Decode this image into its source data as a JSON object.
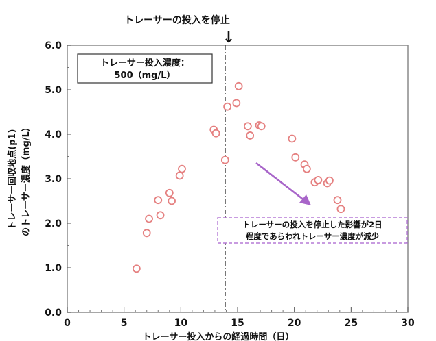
{
  "chart_data": {
    "type": "scatter",
    "title": "",
    "xlabel": "トレーサー投入からの経過時間（日）",
    "ylabel_line1": "トレーサー回収地点(p1)",
    "ylabel_line2": "のトレーサー濃度（mg/L）",
    "xlim": [
      0,
      30
    ],
    "ylim": [
      0,
      6.0
    ],
    "x_ticks": [
      "0",
      "5",
      "10",
      "15",
      "20",
      "25",
      "30"
    ],
    "y_ticks": [
      "0.0",
      "1.0",
      "2.0",
      "3.0",
      "4.0",
      "5.0",
      "6.0"
    ],
    "grid": false,
    "stop_marker": {
      "x": 13.9,
      "label": "トレーサーの投入を停止",
      "arrow": "↓"
    },
    "legend_box": {
      "line1": "トレーサー投入濃度：",
      "line2": "500（mg/L）"
    },
    "annotation": {
      "line1": "トレーサーの投入を停止した影響が2日",
      "line2": "程度であらわれトレーサー濃度が減少"
    },
    "marker_color": "#e58080",
    "arrow_color": "#a865c9",
    "annotation_border_color": "#b57ad6",
    "series": [
      {
        "points": [
          {
            "x": 6.1,
            "y": 0.98
          },
          {
            "x": 7.0,
            "y": 1.78
          },
          {
            "x": 7.2,
            "y": 2.1
          },
          {
            "x": 8.0,
            "y": 2.52
          },
          {
            "x": 8.2,
            "y": 2.18
          },
          {
            "x": 9.0,
            "y": 2.68
          },
          {
            "x": 9.2,
            "y": 2.5
          },
          {
            "x": 9.9,
            "y": 3.07
          },
          {
            "x": 10.1,
            "y": 3.22
          },
          {
            "x": 12.9,
            "y": 4.1
          },
          {
            "x": 13.1,
            "y": 4.02
          },
          {
            "x": 13.9,
            "y": 3.42
          },
          {
            "x": 14.1,
            "y": 4.62
          },
          {
            "x": 14.9,
            "y": 4.7
          },
          {
            "x": 15.1,
            "y": 5.08
          },
          {
            "x": 15.9,
            "y": 4.18
          },
          {
            "x": 16.1,
            "y": 3.97
          },
          {
            "x": 16.9,
            "y": 4.2
          },
          {
            "x": 17.1,
            "y": 4.18
          },
          {
            "x": 19.8,
            "y": 3.9
          },
          {
            "x": 20.1,
            "y": 3.48
          },
          {
            "x": 20.9,
            "y": 3.32
          },
          {
            "x": 21.1,
            "y": 3.22
          },
          {
            "x": 21.8,
            "y": 2.92
          },
          {
            "x": 22.1,
            "y": 2.97
          },
          {
            "x": 22.9,
            "y": 2.9
          },
          {
            "x": 23.1,
            "y": 2.96
          },
          {
            "x": 23.8,
            "y": 2.52
          },
          {
            "x": 24.1,
            "y": 2.32
          }
        ]
      }
    ]
  }
}
